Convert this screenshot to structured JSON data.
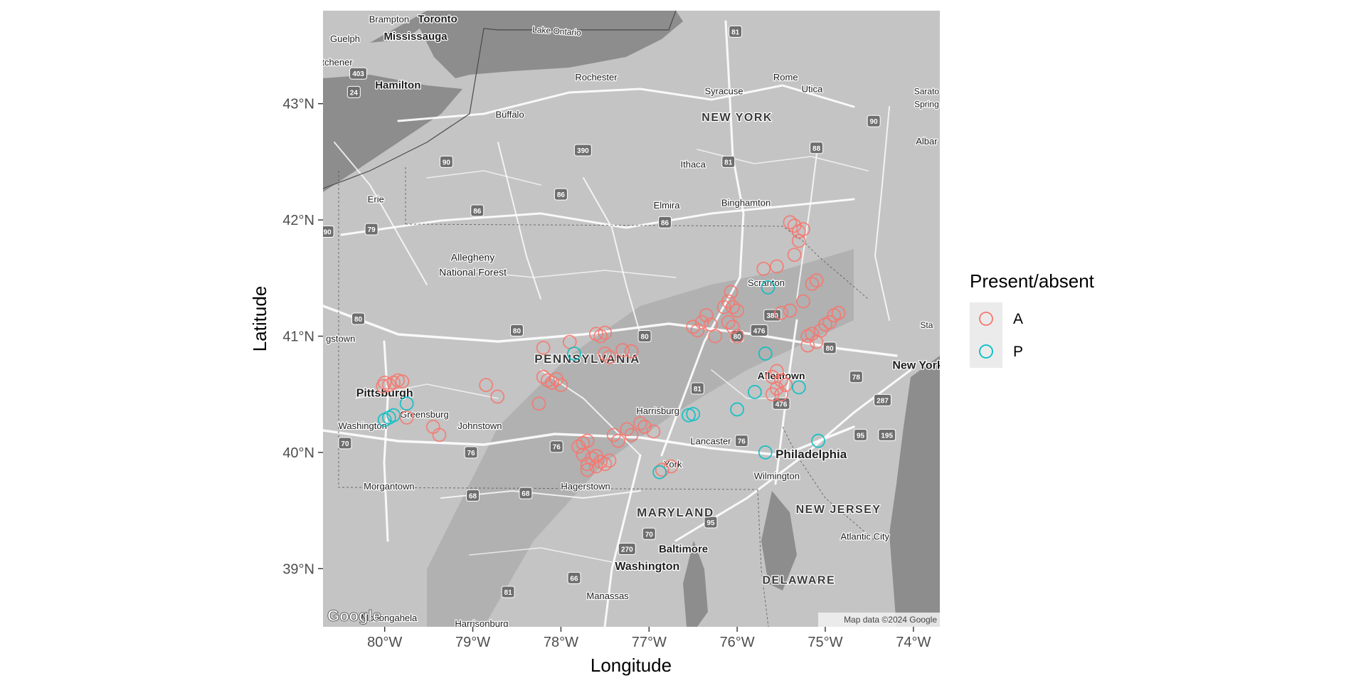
{
  "figure": {
    "xlabel": "Longitude",
    "ylabel": "Latitude",
    "legend_title": "Present/absent",
    "attribution": "Map data ©2024 Google",
    "logo_text": "Google"
  },
  "colors": {
    "A": "#F8766D",
    "P": "#00BFC4",
    "basemap": "#c4c4c4",
    "water": "#8d8d8d",
    "roads": "#ffffff"
  },
  "chart_data": {
    "type": "scatter",
    "legend_placement": "right",
    "xlim": [
      -80.7,
      -73.7
    ],
    "ylim": [
      38.5,
      43.8
    ],
    "x_ticks": [
      {
        "value": -80,
        "label": "80°W"
      },
      {
        "value": -79,
        "label": "79°W"
      },
      {
        "value": -78,
        "label": "78°W"
      },
      {
        "value": -77,
        "label": "77°W"
      },
      {
        "value": -76,
        "label": "76°W"
      },
      {
        "value": -75,
        "label": "75°W"
      },
      {
        "value": -74,
        "label": "74°W"
      }
    ],
    "y_ticks": [
      {
        "value": 39,
        "label": "39°N"
      },
      {
        "value": 40,
        "label": "40°N"
      },
      {
        "value": 41,
        "label": "41°N"
      },
      {
        "value": 42,
        "label": "42°N"
      },
      {
        "value": 43,
        "label": "43°N"
      }
    ],
    "legend_entries": [
      {
        "key": "A",
        "label": "A"
      },
      {
        "key": "P",
        "label": "P"
      }
    ],
    "series": [
      {
        "name": "A",
        "points": [
          [
            -80.0,
            40.6
          ],
          [
            -79.95,
            40.58
          ],
          [
            -79.9,
            40.6
          ],
          [
            -79.85,
            40.62
          ],
          [
            -79.8,
            40.61
          ],
          [
            -80.02,
            40.57
          ],
          [
            -79.75,
            40.3
          ],
          [
            -79.45,
            40.22
          ],
          [
            -79.38,
            40.15
          ],
          [
            -78.85,
            40.58
          ],
          [
            -78.72,
            40.48
          ],
          [
            -78.25,
            40.42
          ],
          [
            -78.2,
            40.65
          ],
          [
            -78.15,
            40.62
          ],
          [
            -78.1,
            40.6
          ],
          [
            -78.05,
            40.63
          ],
          [
            -78.0,
            40.58
          ],
          [
            -78.2,
            40.9
          ],
          [
            -77.9,
            40.95
          ],
          [
            -77.6,
            41.02
          ],
          [
            -77.55,
            41.0
          ],
          [
            -77.5,
            41.03
          ],
          [
            -77.5,
            40.85
          ],
          [
            -77.45,
            40.82
          ],
          [
            -77.3,
            40.88
          ],
          [
            -77.2,
            40.87
          ],
          [
            -77.8,
            40.05
          ],
          [
            -77.75,
            40.08
          ],
          [
            -77.7,
            40.1
          ],
          [
            -77.75,
            39.98
          ],
          [
            -77.7,
            39.9
          ],
          [
            -77.65,
            39.95
          ],
          [
            -77.6,
            39.97
          ],
          [
            -77.55,
            39.92
          ],
          [
            -77.5,
            39.9
          ],
          [
            -77.45,
            39.93
          ],
          [
            -77.7,
            39.85
          ],
          [
            -77.6,
            39.88
          ],
          [
            -77.4,
            40.15
          ],
          [
            -77.35,
            40.1
          ],
          [
            -77.25,
            40.2
          ],
          [
            -77.2,
            40.15
          ],
          [
            -77.1,
            40.25
          ],
          [
            -77.05,
            40.22
          ],
          [
            -76.95,
            40.18
          ],
          [
            -76.85,
            39.85
          ],
          [
            -76.75,
            39.88
          ],
          [
            -76.5,
            41.08
          ],
          [
            -76.45,
            41.05
          ],
          [
            -76.4,
            41.12
          ],
          [
            -76.35,
            41.18
          ],
          [
            -76.3,
            41.1
          ],
          [
            -76.25,
            41.0
          ],
          [
            -76.1,
            41.12
          ],
          [
            -76.05,
            41.08
          ],
          [
            -76.0,
            41.0
          ],
          [
            -76.15,
            41.25
          ],
          [
            -76.1,
            41.3
          ],
          [
            -76.05,
            41.25
          ],
          [
            -76.0,
            41.22
          ],
          [
            -76.07,
            41.38
          ],
          [
            -75.7,
            41.58
          ],
          [
            -75.55,
            41.6
          ],
          [
            -75.4,
            41.98
          ],
          [
            -75.35,
            41.95
          ],
          [
            -75.3,
            41.9
          ],
          [
            -75.25,
            41.92
          ],
          [
            -75.3,
            41.82
          ],
          [
            -75.35,
            41.7
          ],
          [
            -75.5,
            41.2
          ],
          [
            -75.4,
            41.22
          ],
          [
            -75.25,
            41.3
          ],
          [
            -75.15,
            41.45
          ],
          [
            -75.1,
            41.48
          ],
          [
            -75.2,
            41.0
          ],
          [
            -75.15,
            41.02
          ],
          [
            -75.05,
            41.05
          ],
          [
            -75.0,
            41.1
          ],
          [
            -74.95,
            41.12
          ],
          [
            -74.9,
            41.18
          ],
          [
            -74.85,
            41.2
          ],
          [
            -75.1,
            40.95
          ],
          [
            -75.2,
            40.92
          ],
          [
            -75.6,
            40.65
          ],
          [
            -75.55,
            40.7
          ],
          [
            -75.5,
            40.62
          ],
          [
            -75.45,
            40.58
          ],
          [
            -75.55,
            40.55
          ],
          [
            -75.6,
            40.5
          ],
          [
            -75.5,
            40.5
          ]
        ]
      },
      {
        "name": "P",
        "points": [
          [
            -80.0,
            40.28
          ],
          [
            -79.95,
            40.3
          ],
          [
            -79.9,
            40.32
          ],
          [
            -79.75,
            40.42
          ],
          [
            -77.85,
            40.85
          ],
          [
            -76.55,
            40.32
          ],
          [
            -76.5,
            40.33
          ],
          [
            -76.88,
            39.83
          ],
          [
            -76.0,
            40.37
          ],
          [
            -75.8,
            40.52
          ],
          [
            -75.68,
            40.85
          ],
          [
            -75.68,
            40.0
          ],
          [
            -75.3,
            40.56
          ],
          [
            -75.08,
            40.1
          ],
          [
            -75.65,
            41.42
          ]
        ]
      }
    ]
  },
  "map_labels": [
    {
      "text": "Toronto",
      "lon": -79.4,
      "lat": 43.7,
      "size": 15,
      "bold": true
    },
    {
      "text": "Brampton",
      "lon": -79.95,
      "lat": 43.7,
      "size": 13,
      "bold": false
    },
    {
      "text": "Mississauga",
      "lon": -79.65,
      "lat": 43.55,
      "size": 15,
      "bold": true
    },
    {
      "text": "Guelph",
      "lon": -80.45,
      "lat": 43.53,
      "size": 13,
      "bold": false
    },
    {
      "text": "itchener",
      "lon": -80.55,
      "lat": 43.33,
      "size": 13,
      "bold": false
    },
    {
      "text": "Hamilton",
      "lon": -79.85,
      "lat": 43.13,
      "size": 15,
      "bold": true
    },
    {
      "text": "Lake Ontario",
      "lon": -78.05,
      "lat": 43.6,
      "size": 12,
      "bold": false,
      "angle": 4
    },
    {
      "text": "Rochester",
      "lon": -77.6,
      "lat": 43.2,
      "size": 13,
      "bold": false
    },
    {
      "text": "Buffalo",
      "lon": -78.58,
      "lat": 42.88,
      "size": 13,
      "bold": false
    },
    {
      "text": "Syracuse",
      "lon": -76.15,
      "lat": 43.08,
      "size": 13,
      "bold": false
    },
    {
      "text": "Rome",
      "lon": -75.45,
      "lat": 43.2,
      "size": 13,
      "bold": false
    },
    {
      "text": "Utica",
      "lon": -75.15,
      "lat": 43.1,
      "size": 13,
      "bold": false
    },
    {
      "text": "NEW YORK",
      "lon": -76.0,
      "lat": 42.85,
      "size": 16,
      "bold": true,
      "spacing": 1.5
    },
    {
      "text": "Ithaca",
      "lon": -76.5,
      "lat": 42.45,
      "size": 13,
      "bold": false
    },
    {
      "text": "Elmira",
      "lon": -76.8,
      "lat": 42.1,
      "size": 13,
      "bold": false
    },
    {
      "text": "Binghamton",
      "lon": -75.9,
      "lat": 42.12,
      "size": 13,
      "bold": false
    },
    {
      "text": "Erie",
      "lon": -80.1,
      "lat": 42.15,
      "size": 13,
      "bold": false
    },
    {
      "text": "Allegheny",
      "lon": -79.0,
      "lat": 41.65,
      "size": 14,
      "bold": false
    },
    {
      "text": "National Forest",
      "lon": -79.0,
      "lat": 41.52,
      "size": 14,
      "bold": false
    },
    {
      "text": "Scranton",
      "lon": -75.67,
      "lat": 41.43,
      "size": 13,
      "bold": false
    },
    {
      "text": "PENNSYLVANIA",
      "lon": -77.7,
      "lat": 40.77,
      "size": 17,
      "bold": true,
      "spacing": 1.5
    },
    {
      "text": "Allentown",
      "lon": -75.5,
      "lat": 40.63,
      "size": 14,
      "bold": true
    },
    {
      "text": "Pittsburgh",
      "lon": -80.0,
      "lat": 40.48,
      "size": 16,
      "bold": true
    },
    {
      "text": "Greensburg",
      "lon": -79.55,
      "lat": 40.3,
      "size": 13,
      "bold": false
    },
    {
      "text": "Johnstown",
      "lon": -78.92,
      "lat": 40.2,
      "size": 13,
      "bold": false
    },
    {
      "text": "Washington",
      "lon": -80.25,
      "lat": 40.2,
      "size": 13,
      "bold": false
    },
    {
      "text": "Harrisburg",
      "lon": -76.9,
      "lat": 40.33,
      "size": 13,
      "bold": false
    },
    {
      "text": "Lancaster",
      "lon": -76.3,
      "lat": 40.07,
      "size": 13,
      "bold": false
    },
    {
      "text": "York",
      "lon": -76.73,
      "lat": 39.87,
      "size": 13,
      "bold": false
    },
    {
      "text": "Philadelphia",
      "lon": -75.16,
      "lat": 39.95,
      "size": 17,
      "bold": true
    },
    {
      "text": "Wilmington",
      "lon": -75.55,
      "lat": 39.77,
      "size": 13,
      "bold": false
    },
    {
      "text": "Morgantown",
      "lon": -79.95,
      "lat": 39.68,
      "size": 13,
      "bold": false
    },
    {
      "text": "Hagerstown",
      "lon": -77.72,
      "lat": 39.68,
      "size": 13,
      "bold": false
    },
    {
      "text": "MARYLAND",
      "lon": -76.7,
      "lat": 39.45,
      "size": 17,
      "bold": true,
      "spacing": 1.5
    },
    {
      "text": "NEW JERSEY",
      "lon": -74.85,
      "lat": 39.48,
      "size": 16,
      "bold": true,
      "spacing": 1.5
    },
    {
      "text": "Baltimore",
      "lon": -76.61,
      "lat": 39.14,
      "size": 15,
      "bold": true
    },
    {
      "text": "Atlantic City",
      "lon": -74.55,
      "lat": 39.25,
      "size": 13,
      "bold": false
    },
    {
      "text": "Washington",
      "lon": -77.02,
      "lat": 38.99,
      "size": 16,
      "bold": true
    },
    {
      "text": "DELAWARE",
      "lon": -75.3,
      "lat": 38.87,
      "size": 16,
      "bold": true,
      "spacing": 1.5
    },
    {
      "text": "Manassas",
      "lon": -77.47,
      "lat": 38.74,
      "size": 13,
      "bold": false
    },
    {
      "text": "New York",
      "lon": -73.95,
      "lat": 40.72,
      "size": 16,
      "bold": true
    },
    {
      "text": "Albar",
      "lon": -73.85,
      "lat": 42.65,
      "size": 13,
      "bold": false
    },
    {
      "text": "Sarato",
      "lon": -73.85,
      "lat": 43.08,
      "size": 12,
      "bold": false
    },
    {
      "text": "Spring",
      "lon": -73.85,
      "lat": 42.97,
      "size": 12,
      "bold": false
    },
    {
      "text": "Sta",
      "lon": -73.85,
      "lat": 41.07,
      "size": 12,
      "bold": false
    },
    {
      "text": "gstown",
      "lon": -80.5,
      "lat": 40.95,
      "size": 13,
      "bold": false
    },
    {
      "text": "Monongahela",
      "lon": -79.95,
      "lat": 38.55,
      "size": 13,
      "bold": false
    },
    {
      "text": "Harrisonburg",
      "lon": -78.9,
      "lat": 38.5,
      "size": 13,
      "bold": false
    }
  ],
  "highway_shields": [
    {
      "text": "90",
      "lon": -79.3,
      "lat": 42.5
    },
    {
      "text": "90",
      "lon": -80.65,
      "lat": 41.9
    },
    {
      "text": "79",
      "lon": -80.15,
      "lat": 41.92
    },
    {
      "text": "86",
      "lon": -78.95,
      "lat": 42.08
    },
    {
      "text": "86",
      "lon": -78.0,
      "lat": 42.22
    },
    {
      "text": "86",
      "lon": -76.82,
      "lat": 41.98
    },
    {
      "text": "390",
      "lon": -77.75,
      "lat": 42.6
    },
    {
      "text": "81",
      "lon": -76.1,
      "lat": 42.5
    },
    {
      "text": "81",
      "lon": -76.02,
      "lat": 43.62
    },
    {
      "text": "88",
      "lon": -75.1,
      "lat": 42.62
    },
    {
      "text": "90",
      "lon": -74.45,
      "lat": 42.85
    },
    {
      "text": "403",
      "lon": -80.3,
      "lat": 43.26
    },
    {
      "text": "24",
      "lon": -80.35,
      "lat": 43.1
    },
    {
      "text": "80",
      "lon": -80.3,
      "lat": 41.15
    },
    {
      "text": "80",
      "lon": -78.5,
      "lat": 41.05
    },
    {
      "text": "80",
      "lon": -77.05,
      "lat": 41.0
    },
    {
      "text": "80",
      "lon": -76.0,
      "lat": 41.0
    },
    {
      "text": "476",
      "lon": -75.75,
      "lat": 41.05
    },
    {
      "text": "380",
      "lon": -75.6,
      "lat": 41.18
    },
    {
      "text": "80",
      "lon": -74.95,
      "lat": 40.9
    },
    {
      "text": "81",
      "lon": -76.45,
      "lat": 40.55
    },
    {
      "text": "76",
      "lon": -79.02,
      "lat": 40.0
    },
    {
      "text": "76",
      "lon": -78.05,
      "lat": 40.05
    },
    {
      "text": "76",
      "lon": -75.95,
      "lat": 40.1
    },
    {
      "text": "70",
      "lon": -80.45,
      "lat": 40.08
    },
    {
      "text": "68",
      "lon": -79.0,
      "lat": 39.63
    },
    {
      "text": "68",
      "lon": -78.4,
      "lat": 39.65
    },
    {
      "text": "70",
      "lon": -77.0,
      "lat": 39.3
    },
    {
      "text": "270",
      "lon": -77.25,
      "lat": 39.17
    },
    {
      "text": "95",
      "lon": -76.3,
      "lat": 39.4
    },
    {
      "text": "66",
      "lon": -77.85,
      "lat": 38.92
    },
    {
      "text": "81",
      "lon": -78.6,
      "lat": 38.8
    },
    {
      "text": "78",
      "lon": -74.65,
      "lat": 40.65
    },
    {
      "text": "287",
      "lon": -74.35,
      "lat": 40.45
    },
    {
      "text": "95",
      "lon": -74.6,
      "lat": 40.15
    },
    {
      "text": "195",
      "lon": -74.3,
      "lat": 40.15
    },
    {
      "text": "476",
      "lon": -75.5,
      "lat": 40.42
    }
  ]
}
